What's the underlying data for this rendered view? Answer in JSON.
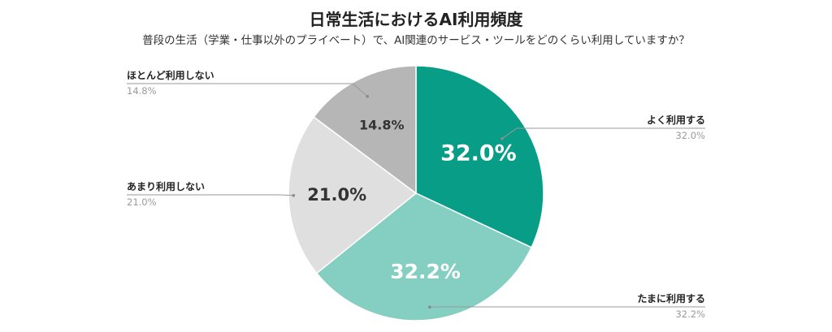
{
  "chart_data": {
    "type": "pie",
    "title": "日常生活におけるAI利用頻度",
    "subtitle": "普段の生活（学業・仕事以外のプライベート）で、AI関連のサービス・ツールをどのくらい利用していますか？",
    "slices": [
      {
        "label": "よく利用する",
        "value": 32.0,
        "display": "32.0%",
        "color": "#089d86"
      },
      {
        "label": "たまに利用する",
        "value": 32.2,
        "display": "32.2%",
        "color": "#84cfc2"
      },
      {
        "label": "あまり利用しない",
        "value": 21.0,
        "display": "21.0%",
        "color": "#dedfde"
      },
      {
        "label": "ほとんど利用しない",
        "value": 14.8,
        "display": "14.8%",
        "color": "#b5b6b5"
      }
    ]
  }
}
